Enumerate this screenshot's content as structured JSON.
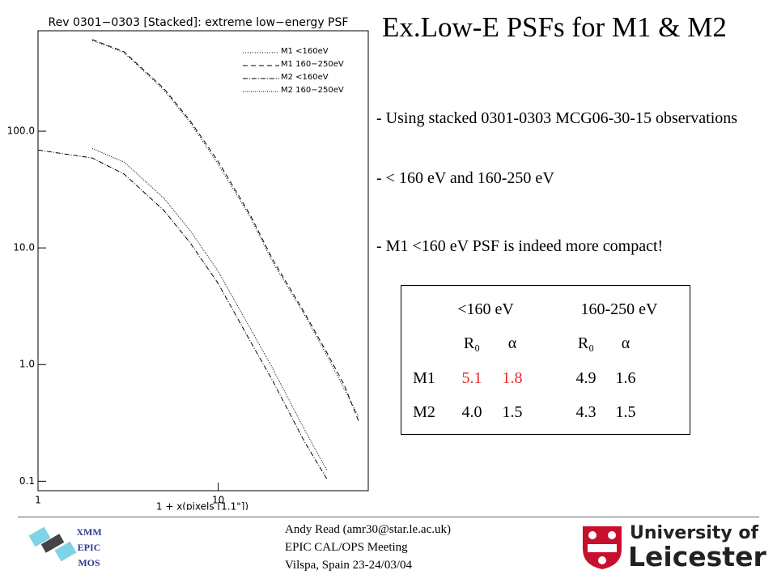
{
  "chart_data": {
    "type": "line",
    "title": "Rev 0301−0303 [Stacked]: extreme low−energy PSF",
    "xlabel": "1 + x(pixels [1.1\"])",
    "xscale": "log",
    "yscale": "log",
    "x": [
      1,
      2,
      3,
      5,
      7,
      10,
      15,
      20,
      30,
      40,
      50,
      60
    ],
    "xlim": [
      1,
      68
    ],
    "xticks": [
      1,
      10
    ],
    "ylim": [
      0.083,
      726
    ],
    "yticks": [
      {
        "value": 0.1,
        "label": "0.1"
      },
      {
        "value": 1,
        "label": "1.0"
      },
      {
        "value": 10,
        "label": "10.0"
      },
      {
        "value": 100,
        "label": "100.0"
      }
    ],
    "legend": "upper right",
    "series": [
      {
        "name": "M1 <160eV",
        "color": "#000000",
        "dash": "1,2",
        "values": [
          null,
          600,
          472,
          225,
          118,
          52,
          18.5,
          7.6,
          2.7,
          1.2,
          0.62,
          0.36
        ]
      },
      {
        "name": "M1 160−250eV",
        "color": "#000000",
        "dash": "6,4",
        "values": [
          null,
          610,
          480,
          232,
          122,
          55,
          19.3,
          8.0,
          2.8,
          1.27,
          0.67,
          0.33
        ]
      },
      {
        "name": "M2 <160eV",
        "color": "#000000",
        "dash": "6,2,1,2",
        "values": [
          69,
          59,
          43,
          20.9,
          11,
          4.95,
          1.6,
          0.73,
          0.22,
          0.105,
          null,
          null
        ]
      },
      {
        "name": "M2 160−250eV",
        "color": "#000000",
        "dash": "1,1.5",
        "values": [
          null,
          71,
          54.5,
          26.6,
          14,
          6.3,
          2.06,
          0.93,
          0.28,
          0.125,
          null,
          null
        ]
      }
    ]
  },
  "slide": {
    "title": "Ex.Low-E PSFs for M1 & M2",
    "bullets": [
      "- Using stacked 0301-0303 MCG06-30-15 observations",
      "- < 160 eV and 160-250 eV",
      "- M1 <160 eV PSF is indeed more compact!"
    ]
  },
  "table": {
    "header": [
      "<160 eV",
      "160-250 eV"
    ],
    "subheader": [
      "R₀",
      "α",
      "R₀",
      "α"
    ],
    "rows": [
      [
        "M1",
        "5.1",
        "1.8",
        "4.9",
        "1.6"
      ],
      [
        "M2",
        "4.0",
        "1.5",
        "4.3",
        "1.5"
      ]
    ]
  },
  "footer": {
    "logo_left": [
      "XMM",
      "EPIC",
      "MOS"
    ],
    "lines": [
      "Andy Read (amr30@star.le.ac.uk)",
      "EPIC CAL/OPS Meeting",
      "Vilspa, Spain 23-24/03/04"
    ],
    "university": [
      "University of",
      "Leicester"
    ]
  }
}
